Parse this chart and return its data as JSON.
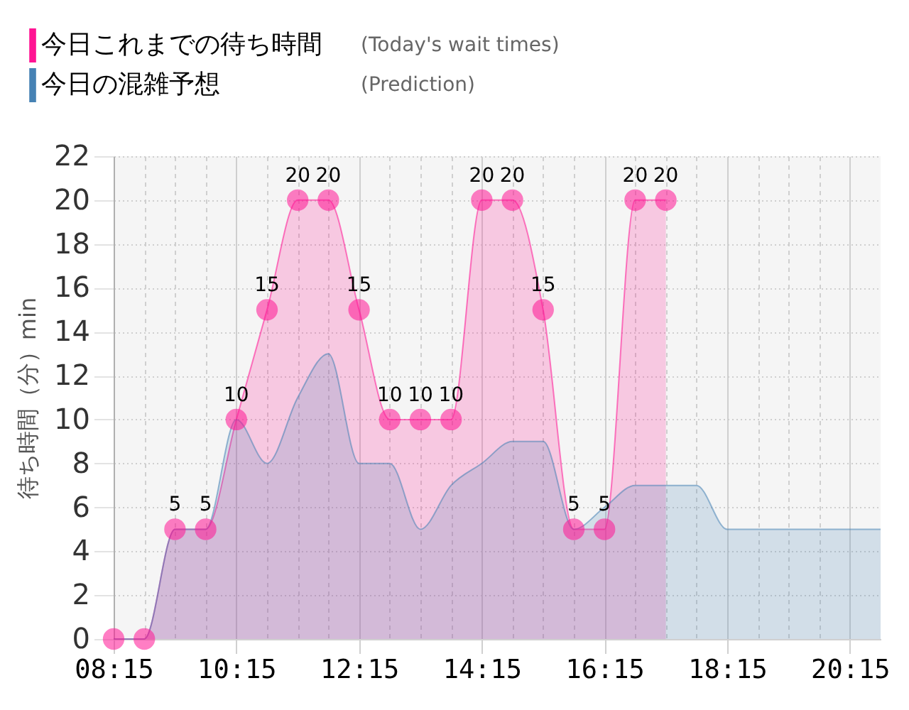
{
  "chart_data": {
    "type": "area",
    "ylabel": "待ち時間（分）min",
    "legend": "top left",
    "grid": true,
    "annotations": [
      "(Today's wait times)",
      "(Prediction)"
    ],
    "xlim": [
      8.25,
      20.75
    ],
    "xticks": [
      {
        "value": 8.25,
        "label": "08:15"
      },
      {
        "value": 8.75,
        "label": null
      },
      {
        "value": 9.25,
        "label": null
      },
      {
        "value": 9.75,
        "label": null
      },
      {
        "value": 10.25,
        "label": "10:15"
      },
      {
        "value": 10.75,
        "label": null
      },
      {
        "value": 11.25,
        "label": null
      },
      {
        "value": 11.75,
        "label": null
      },
      {
        "value": 12.25,
        "label": "12:15"
      },
      {
        "value": 12.75,
        "label": null
      },
      {
        "value": 13.25,
        "label": null
      },
      {
        "value": 13.75,
        "label": null
      },
      {
        "value": 14.25,
        "label": "14:15"
      },
      {
        "value": 14.75,
        "label": null
      },
      {
        "value": 15.25,
        "label": null
      },
      {
        "value": 15.75,
        "label": null
      },
      {
        "value": 16.25,
        "label": "16:15"
      },
      {
        "value": 16.75,
        "label": null
      },
      {
        "value": 17.25,
        "label": null
      },
      {
        "value": 17.75,
        "label": null
      },
      {
        "value": 18.25,
        "label": "18:15"
      },
      {
        "value": 18.75,
        "label": null
      },
      {
        "value": 19.25,
        "label": null
      },
      {
        "value": 19.75,
        "label": null
      },
      {
        "value": 20.25,
        "label": "20:15"
      }
    ],
    "ylim": [
      0,
      22
    ],
    "yticks": [
      0,
      2,
      4,
      6,
      8,
      10,
      12,
      14,
      16,
      18,
      20,
      22
    ],
    "series": [
      {
        "name": "今日これまでの待ち時間",
        "color": "#ff1493",
        "marker": "circle",
        "x": [
          8.25,
          8.75,
          9.25,
          9.75,
          10.25,
          10.75,
          11.25,
          11.75,
          12.25,
          12.75,
          13.25,
          13.75,
          14.25,
          14.75,
          15.25,
          15.75,
          16.25,
          16.75,
          17.25
        ],
        "values": [
          0,
          0,
          5,
          5,
          10,
          15,
          20,
          20,
          15,
          10,
          10,
          10,
          20,
          20,
          15,
          5,
          5,
          20,
          20
        ],
        "value_labels": [
          null,
          null,
          "5",
          "5",
          "10",
          "15",
          "20",
          "20",
          "15",
          "10",
          "10",
          "10",
          "20",
          "20",
          "15",
          "5",
          "5",
          "20",
          "20"
        ]
      },
      {
        "name": "今日の混雑予想",
        "color": "#4682b4",
        "x": [
          8.25,
          8.75,
          9.25,
          9.75,
          10.25,
          10.75,
          11.25,
          11.75,
          12.25,
          12.75,
          13.25,
          13.75,
          14.25,
          14.75,
          15.25,
          15.75,
          16.25,
          16.75,
          17.25,
          17.75,
          18.25,
          18.75,
          19.25,
          19.75,
          20.25,
          20.75
        ],
        "values": [
          0,
          0,
          5,
          5,
          10,
          8,
          11,
          13,
          8,
          8,
          5,
          7,
          8,
          9,
          9,
          5,
          6,
          7,
          7,
          7,
          5,
          5,
          5,
          5,
          5,
          5
        ]
      }
    ]
  }
}
